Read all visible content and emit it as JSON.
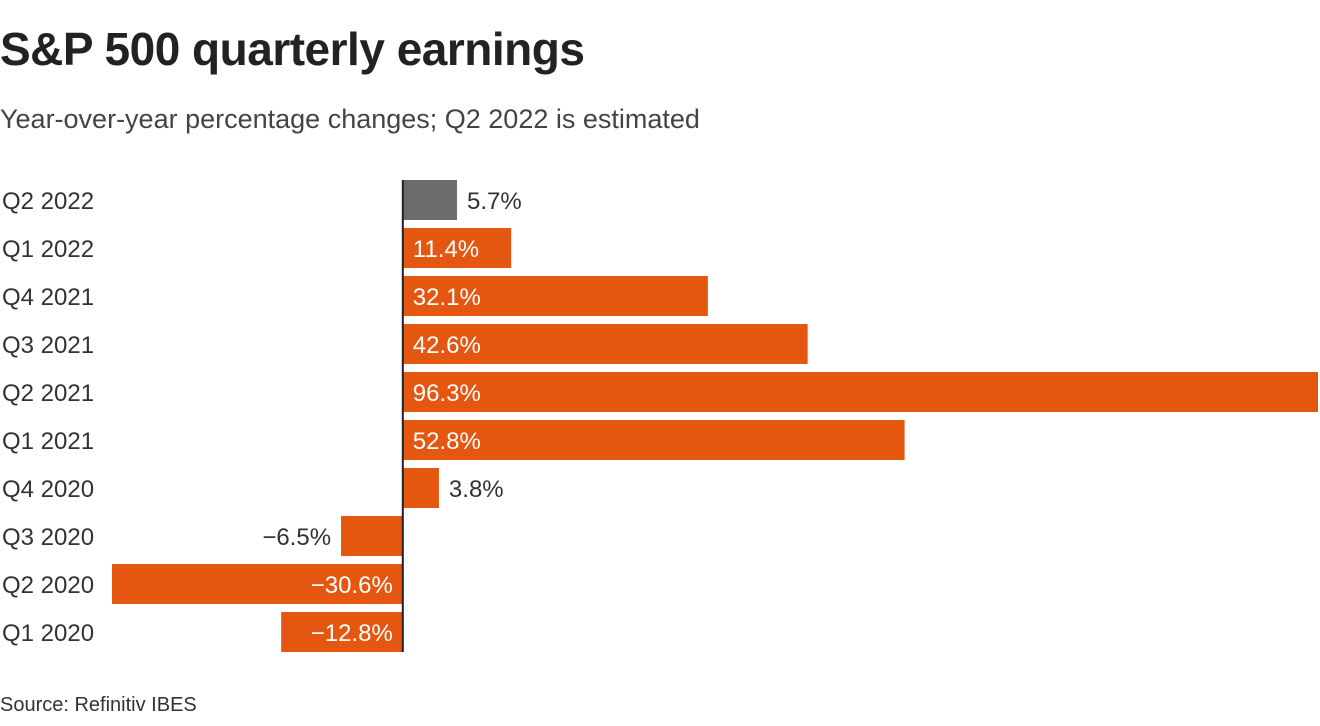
{
  "chart_data": {
    "type": "bar",
    "orientation": "horizontal",
    "title": "S&P 500 quarterly earnings",
    "subtitle": "Year-over-year percentage changes; Q2 2022 is estimated",
    "source": "Source: Refinitiv IBES",
    "categories": [
      "Q2 2022",
      "Q1 2022",
      "Q4 2021",
      "Q3 2021",
      "Q2 2021",
      "Q1 2021",
      "Q4 2020",
      "Q3 2020",
      "Q2 2020",
      "Q1 2020"
    ],
    "values": [
      5.7,
      11.4,
      32.1,
      42.6,
      96.3,
      52.8,
      3.8,
      -6.5,
      -30.6,
      -12.8
    ],
    "value_labels": [
      "5.7%",
      "11.4%",
      "32.1%",
      "42.6%",
      "96.3%",
      "52.8%",
      "3.8%",
      "−6.5%",
      "−30.6%",
      "−12.8%"
    ],
    "estimated": [
      true,
      false,
      false,
      false,
      false,
      false,
      false,
      false,
      false,
      false
    ],
    "xlim": [
      -30.6,
      96.3
    ],
    "grid": false,
    "legend": "none",
    "colors": {
      "actual": "#e55711",
      "estimated": "#6b6b6b",
      "axis": "#222222",
      "label_inside": "#ffffff",
      "label_outside": "#333333"
    }
  }
}
